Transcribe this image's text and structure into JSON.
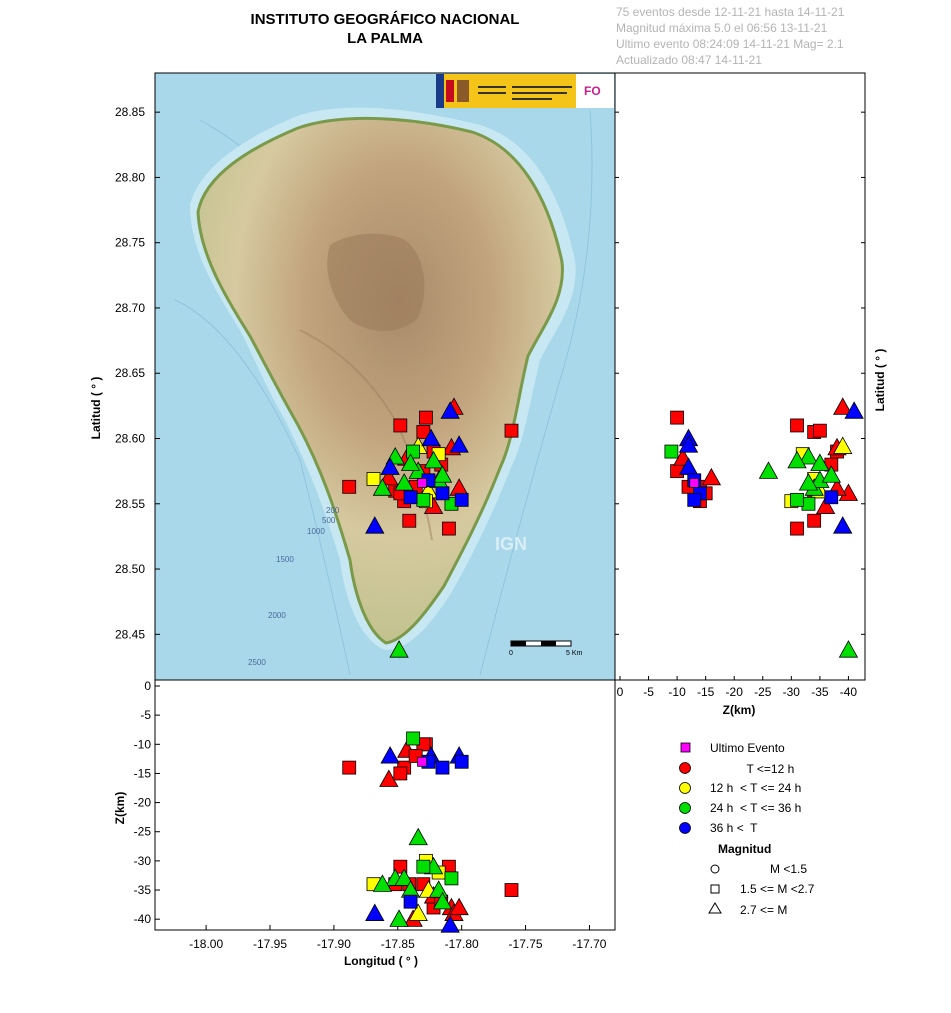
{
  "header": {
    "title_line1": "INSTITUTO GEOGRÁFICO NACIONAL",
    "title_line2": "LA PALMA",
    "info_line1": "75 eventos desde 12-11-21 hasta 14-11-21",
    "info_line2": "Magnitud máxima 5.0 el 06:56 13-11-21",
    "info_line3": "Ultimo evento   08:24:09 14-11-21  Mag= 2.1",
    "info_line4": "Actualizado   08:47  14-11-21"
  },
  "map_labels": {
    "watermark": "IGN",
    "scale_start": "0",
    "scale_end": "5 Km",
    "contours": [
      "200",
      "500",
      "1000",
      "1500",
      "2000",
      "2500"
    ],
    "logo_text": "GOBIERNO DE ESPAÑA · MINISTERIO DE TRANSPORTES, MOVILIDAD Y AGENDA URBANA"
  },
  "colors": {
    "red": "#ff0000",
    "yellow": "#ffff00",
    "green": "#00e000",
    "blue": "#0000ff",
    "magenta": "#ff00ff",
    "sea": "#a9d8ea"
  },
  "legend": {
    "time_items": [
      {
        "label": "Ultimo Evento",
        "color": "#ff00ff",
        "shape": "square"
      },
      {
        "label": "           T <=12 h",
        "color": "#ff0000",
        "shape": "circle"
      },
      {
        "label": "12 h  < T <= 24 h",
        "color": "#ffff00",
        "shape": "circle"
      },
      {
        "label": "24 h  < T <= 36 h",
        "color": "#00e000",
        "shape": "circle"
      },
      {
        "label": "36 h <  T",
        "color": "#0000ff",
        "shape": "circle"
      }
    ],
    "mag_title": "Magnitud",
    "mag_items": [
      {
        "label": "         M <1.5",
        "shape": "circle"
      },
      {
        "label": "1.5 <= M <2.7",
        "shape": "square"
      },
      {
        "label": "2.7 <= M",
        "shape": "triangle"
      }
    ]
  },
  "chart_data": {
    "type": "scatter",
    "title": "INSTITUTO GEOGRÁFICO NACIONAL LA PALMA",
    "panels": {
      "map": {
        "xlabel": "",
        "ylabel": "Latitud ( ° )",
        "xlim": [
          -18.04,
          -17.68
        ],
        "ylim": [
          28.415,
          28.88
        ]
      },
      "depth_lat": {
        "xlabel": "Z(km)",
        "ylabel": "Latitud ( ° )",
        "xlim": [
          0,
          -41.5
        ],
        "ylim": [
          28.415,
          28.88
        ]
      },
      "lon_depth": {
        "xlabel": "Longitud ( ° )",
        "ylabel": "Z(km)",
        "xlim": [
          -18.04,
          -17.68
        ],
        "ylim": [
          -41,
          0
        ]
      }
    },
    "lat_ticks": [
      "28.85",
      "28.80",
      "28.75",
      "28.70",
      "28.65",
      "28.60",
      "28.55",
      "28.50",
      "28.45"
    ],
    "lon_ticks": [
      "-18.00",
      "-17.95",
      "-17.90",
      "-17.85",
      "-17.80",
      "-17.75",
      "-17.70"
    ],
    "zr_ticks": [
      "0",
      "-5",
      "-10",
      "-15",
      "-20",
      "-25",
      "-30",
      "-35",
      "-40"
    ],
    "zb_ticks": [
      "0",
      "-5",
      "-10",
      "-15",
      "-20",
      "-25",
      "-30",
      "-35",
      "-40"
    ],
    "events": [
      {
        "lon": -17.831,
        "lat": 28.566,
        "z": -13,
        "mag": 2.1,
        "color": "magenta"
      },
      {
        "lon": -17.848,
        "lat": 28.61,
        "z": -31,
        "mag": 2.0,
        "color": "red"
      },
      {
        "lon": -17.828,
        "lat": 28.616,
        "z": -10,
        "mag": 2.2,
        "color": "red"
      },
      {
        "lon": -17.83,
        "lat": 28.605,
        "z": -34,
        "mag": 2.0,
        "color": "red"
      },
      {
        "lon": -17.822,
        "lat": 28.59,
        "z": -38,
        "mag": 2.4,
        "color": "red"
      },
      {
        "lon": -17.808,
        "lat": 28.593,
        "z": -38,
        "mag": 3.5,
        "color": "red"
      },
      {
        "lon": -17.806,
        "lat": 28.624,
        "z": -39,
        "mag": 2.9,
        "color": "red"
      },
      {
        "lon": -17.761,
        "lat": 28.606,
        "z": -35,
        "mag": 2.0,
        "color": "red"
      },
      {
        "lon": -17.888,
        "lat": 28.563,
        "z": -14,
        "mag": 2.0,
        "color": "red"
      },
      {
        "lon": -17.852,
        "lat": 28.56,
        "z": -34,
        "mag": 2.1,
        "color": "red"
      },
      {
        "lon": -17.845,
        "lat": 28.552,
        "z": -14,
        "mag": 2.3,
        "color": "red"
      },
      {
        "lon": -17.841,
        "lat": 28.537,
        "z": -34,
        "mag": 2.2,
        "color": "red"
      },
      {
        "lon": -17.81,
        "lat": 28.531,
        "z": -31,
        "mag": 2.0,
        "color": "red"
      },
      {
        "lon": -17.838,
        "lat": 28.558,
        "z": -40,
        "mag": 3.2,
        "color": "red"
      },
      {
        "lon": -17.822,
        "lat": 28.548,
        "z": -36,
        "mag": 3.0,
        "color": "red"
      },
      {
        "lon": -17.802,
        "lat": 28.562,
        "z": -38,
        "mag": 3.4,
        "color": "red"
      },
      {
        "lon": -17.857,
        "lat": 28.57,
        "z": -16,
        "mag": 2.8,
        "color": "red"
      },
      {
        "lon": -17.83,
        "lat": 28.575,
        "z": -10,
        "mag": 2.0,
        "color": "red"
      },
      {
        "lon": -17.816,
        "lat": 28.58,
        "z": -37,
        "mag": 2.1,
        "color": "red"
      },
      {
        "lon": -17.843,
        "lat": 28.585,
        "z": -11,
        "mag": 2.9,
        "color": "red"
      },
      {
        "lon": -17.848,
        "lat": 28.558,
        "z": -15,
        "mag": 2.0,
        "color": "red"
      },
      {
        "lon": -17.836,
        "lat": 28.563,
        "z": -12,
        "mag": 2.0,
        "color": "red"
      },
      {
        "lon": -17.869,
        "lat": 28.569,
        "z": -34,
        "mag": 2.0,
        "color": "yellow"
      },
      {
        "lon": -17.818,
        "lat": 28.588,
        "z": -32,
        "mag": 2.0,
        "color": "yellow"
      },
      {
        "lon": -17.834,
        "lat": 28.594,
        "z": -39,
        "mag": 2.9,
        "color": "yellow"
      },
      {
        "lon": -17.826,
        "lat": 28.56,
        "z": -35,
        "mag": 2.9,
        "color": "yellow"
      },
      {
        "lon": -17.828,
        "lat": 28.552,
        "z": -30,
        "mag": 2.0,
        "color": "yellow"
      },
      {
        "lon": -17.852,
        "lat": 28.586,
        "z": -33,
        "mag": 2.8,
        "color": "green"
      },
      {
        "lon": -17.862,
        "lat": 28.562,
        "z": -34,
        "mag": 2.9,
        "color": "green"
      },
      {
        "lon": -17.838,
        "lat": 28.59,
        "z": -9,
        "mag": 2.0,
        "color": "green"
      },
      {
        "lon": -17.822,
        "lat": 28.583,
        "z": -31,
        "mag": 3.3,
        "color": "green"
      },
      {
        "lon": -17.818,
        "lat": 28.568,
        "z": -35,
        "mag": 3.0,
        "color": "green"
      },
      {
        "lon": -17.808,
        "lat": 28.55,
        "z": -33,
        "mag": 2.0,
        "color": "green"
      },
      {
        "lon": -17.834,
        "lat": 28.575,
        "z": -26,
        "mag": 2.8,
        "color": "green"
      },
      {
        "lon": -17.845,
        "lat": 28.566,
        "z": -33,
        "mag": 2.8,
        "color": "green"
      },
      {
        "lon": -17.849,
        "lat": 28.438,
        "z": -40,
        "mag": 3.0,
        "color": "green"
      },
      {
        "lon": -17.815,
        "lat": 28.572,
        "z": -37,
        "mag": 3.2,
        "color": "green"
      },
      {
        "lon": -17.83,
        "lat": 28.553,
        "z": -31,
        "mag": 2.0,
        "color": "green"
      },
      {
        "lon": -17.84,
        "lat": 28.581,
        "z": -35,
        "mag": 3.0,
        "color": "green"
      },
      {
        "lon": -17.856,
        "lat": 28.578,
        "z": -12,
        "mag": 2.8,
        "color": "blue"
      },
      {
        "lon": -17.868,
        "lat": 28.533,
        "z": -39,
        "mag": 2.9,
        "color": "blue"
      },
      {
        "lon": -17.824,
        "lat": 28.6,
        "z": -12,
        "mag": 2.9,
        "color": "blue"
      },
      {
        "lon": -17.809,
        "lat": 28.621,
        "z": -41,
        "mag": 3.0,
        "color": "blue"
      },
      {
        "lon": -17.802,
        "lat": 28.595,
        "z": -12,
        "mag": 3.1,
        "color": "blue"
      },
      {
        "lon": -17.84,
        "lat": 28.555,
        "z": -37,
        "mag": 2.0,
        "color": "blue"
      },
      {
        "lon": -17.826,
        "lat": 28.568,
        "z": -13,
        "mag": 2.0,
        "color": "blue"
      },
      {
        "lon": -17.815,
        "lat": 28.558,
        "z": -14,
        "mag": 2.0,
        "color": "blue"
      },
      {
        "lon": -17.8,
        "lat": 28.553,
        "z": -13,
        "mag": 2.0,
        "color": "blue"
      }
    ]
  }
}
